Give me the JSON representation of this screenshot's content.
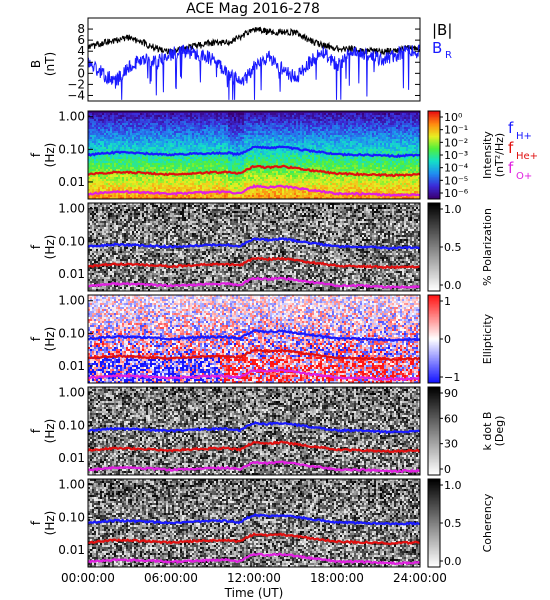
{
  "title": "ACE Mag 2016-278",
  "chart_data": {
    "type": "line",
    "x_axis": {
      "label": "Time (UT)",
      "ticks": [
        "00:00:00",
        "06:00:00",
        "12:00:00",
        "18:00:00",
        "24:00:00"
      ],
      "range_hours": [
        0,
        24
      ]
    },
    "top_panel": {
      "ylabel": "B",
      "yunit": "(nT)",
      "yticks": [
        "8",
        "6",
        "4",
        "2",
        "0",
        "−2",
        "−4"
      ],
      "ylim": [
        -5,
        10
      ],
      "legend": [
        {
          "name": "|B|",
          "color": "#000000"
        },
        {
          "name": "B",
          "sub": "R",
          "color": "#1a1aff"
        }
      ],
      "series": [
        {
          "name": "|B|",
          "color": "#000000",
          "x": [
            0,
            1,
            2,
            3,
            4,
            5,
            6,
            7,
            8,
            9,
            10,
            11,
            12,
            13,
            14,
            15,
            16,
            17,
            18,
            19,
            20,
            21,
            22,
            23,
            24
          ],
          "y": [
            4.5,
            5.5,
            6.0,
            6.5,
            5.5,
            4.5,
            4.0,
            4.5,
            5.0,
            5.5,
            5.5,
            6.5,
            8.0,
            7.5,
            7.5,
            7.5,
            6.0,
            5.0,
            4.5,
            4.5,
            4.0,
            4.0,
            4.0,
            4.5,
            4.5
          ]
        },
        {
          "name": "B_R",
          "color": "#1a1aff",
          "x": [
            0,
            1,
            2,
            3,
            4,
            5,
            6,
            7,
            8,
            9,
            10,
            11,
            12,
            13,
            14,
            15,
            16,
            17,
            18,
            19,
            20,
            21,
            22,
            23,
            24
          ],
          "y": [
            2.0,
            0.0,
            -1.5,
            1.5,
            2.5,
            2.0,
            3.5,
            4.0,
            3.5,
            2.5,
            0.5,
            -2.0,
            1.0,
            3.0,
            1.0,
            -1.0,
            2.0,
            4.0,
            1.5,
            3.5,
            3.5,
            2.5,
            3.0,
            4.0,
            4.0
          ]
        }
      ]
    },
    "spectral_panels": [
      {
        "id": "intensity",
        "ylabel": "f",
        "yunit": "(Hz)",
        "cbar_label": "Intensity",
        "cbar_unit": "(nT²/Hz)",
        "cbar_ticks": [
          "10⁰",
          "10⁻¹",
          "10⁻²",
          "10⁻³",
          "10⁻⁴",
          "10⁻⁵",
          "10⁻⁶"
        ],
        "cbar_colors": [
          "#3a0073",
          "#3b2bd9",
          "#1f8ff0",
          "#14e0c8",
          "#50ef3c",
          "#e8ee22",
          "#ff8a10",
          "#e81010",
          "#ffffff"
        ]
      },
      {
        "id": "polarization",
        "ylabel": "f",
        "yunit": "(Hz)",
        "cbar_label": "% Polarization",
        "cbar_unit": "",
        "cbar_ticks": [
          "1.0",
          "0.5",
          "0.0"
        ],
        "cbar_colors": [
          "#ffffff",
          "#000000"
        ]
      },
      {
        "id": "ellipticity",
        "ylabel": "f",
        "yunit": "(Hz)",
        "cbar_label": "Ellipticity",
        "cbar_unit": "",
        "cbar_ticks": [
          "1",
          "0",
          "−1"
        ],
        "cbar_colors": [
          "#1515ff",
          "#ffffff",
          "#ff1515"
        ]
      },
      {
        "id": "kdotb",
        "ylabel": "f",
        "yunit": "(Hz)",
        "cbar_label": "k dot B",
        "cbar_unit": "(Deg)",
        "cbar_ticks": [
          "90",
          "60",
          "30",
          "0"
        ],
        "cbar_colors": [
          "#ffffff",
          "#000000"
        ]
      },
      {
        "id": "coherency",
        "ylabel": "f",
        "yunit": "(Hz)",
        "cbar_label": "Coherency",
        "cbar_unit": "",
        "cbar_ticks": [
          "1.0",
          "0.5",
          "0.0"
        ],
        "cbar_colors": [
          "#ffffff",
          "#000000"
        ]
      }
    ],
    "freq_axis": {
      "ticks": [
        "1.00",
        "0.10",
        "0.01"
      ],
      "scale": "log",
      "range_hz": [
        0.003,
        1.5
      ]
    },
    "gyrofrequency_legend": [
      {
        "label": "f",
        "sub": "H+",
        "color": "#1a1aff"
      },
      {
        "label": "f",
        "sub": "He+",
        "color": "#e01010"
      },
      {
        "label": "f",
        "sub": "O+",
        "color": "#e020e0"
      }
    ],
    "gyrofrequency_series": [
      {
        "name": "fH+",
        "color": "#1a1aff",
        "x": [
          0,
          2,
          4,
          6,
          8,
          10,
          11,
          12,
          13,
          14,
          16,
          18,
          20,
          22,
          24
        ],
        "y": [
          0.068,
          0.08,
          0.075,
          0.068,
          0.075,
          0.078,
          0.07,
          0.118,
          0.11,
          0.118,
          0.09,
          0.07,
          0.068,
          0.062,
          0.066
        ]
      },
      {
        "name": "fHe+",
        "color": "#e01010",
        "x": [
          0,
          2,
          4,
          6,
          8,
          10,
          11,
          12,
          13,
          14,
          16,
          18,
          20,
          22,
          24
        ],
        "y": [
          0.017,
          0.02,
          0.019,
          0.017,
          0.019,
          0.02,
          0.018,
          0.03,
          0.028,
          0.03,
          0.023,
          0.018,
          0.017,
          0.016,
          0.017
        ]
      },
      {
        "name": "fO+",
        "color": "#e020e0",
        "x": [
          0,
          2,
          4,
          6,
          8,
          10,
          11,
          12,
          13,
          14,
          16,
          18,
          20,
          22,
          24
        ],
        "y": [
          0.0043,
          0.005,
          0.0048,
          0.0043,
          0.0047,
          0.005,
          0.0045,
          0.0074,
          0.0069,
          0.0074,
          0.0057,
          0.0044,
          0.0043,
          0.0039,
          0.0041
        ]
      }
    ]
  }
}
